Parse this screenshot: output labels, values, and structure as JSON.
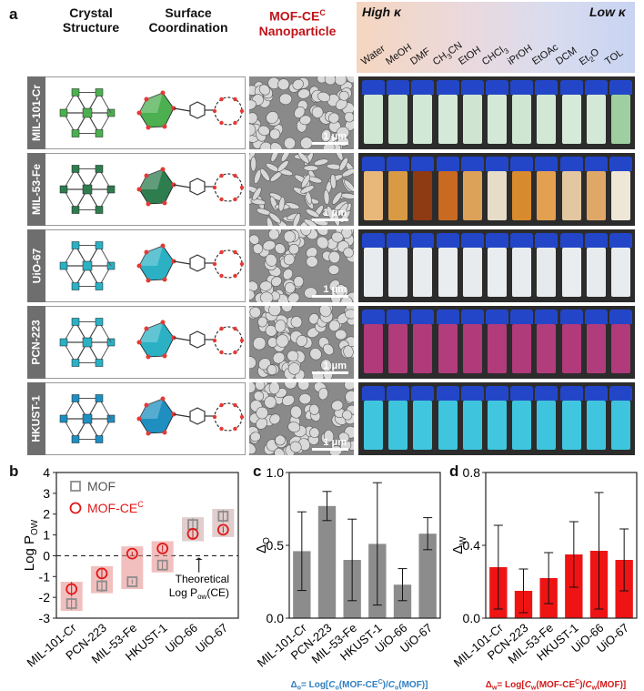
{
  "panels": {
    "a": "a",
    "b": "b",
    "c": "c",
    "d": "d"
  },
  "header": {
    "crystal": "Crystal Structure",
    "crystal1": "Crystal",
    "crystal2": "Structure",
    "surface1": "Surface",
    "surface2": "Coordination",
    "mofce1": "MOF-CE",
    "mofce_sup": "C",
    "mofce2": "Nanoparticle",
    "high": "High κ",
    "low": "Low κ"
  },
  "solvents": [
    "Water",
    "MeOH",
    "DMF",
    "CH3CN",
    "EtOH",
    "CHCl3",
    "iPrOH",
    "EtOAc",
    "DCM",
    "Et2O",
    "TOL"
  ],
  "rows": [
    {
      "label": "MIL-101-Cr",
      "scale": "1 μm",
      "vial_colors": [
        "#cfe7d3",
        "#cde5d0",
        "#d2e8d6",
        "#d5e9d8",
        "#cfe5d2",
        "#d3e8d6",
        "#cfe6d2",
        "#d2e8d5",
        "#d6ead9",
        "#d3e8d6",
        "#9fcfa0"
      ],
      "node": "#4caf50"
    },
    {
      "label": "MIL-53-Fe",
      "scale": "1 μm",
      "vial_colors": [
        "#e8b87a",
        "#d99a45",
        "#8e3a12",
        "#c96a23",
        "#dda25a",
        "#e6dcc8",
        "#d88a2e",
        "#e2a050",
        "#e3c7a1",
        "#e0a868",
        "#eee6d6"
      ],
      "node": "#2e7d4f"
    },
    {
      "label": "UiO-67",
      "scale": "1 μm",
      "vial_colors": [
        "#e8ecee",
        "#e6eaed",
        "#e8ecee",
        "#e9edef",
        "#e7ebee",
        "#e9edef",
        "#e8ecee",
        "#e6eaed",
        "#e9edef",
        "#e7ebee",
        "#e8ecee"
      ],
      "node": "#2bb0c4"
    },
    {
      "label": "PCN-223",
      "scale": "1 μm",
      "vial_colors": [
        "#b03a7a",
        "#b13c7c",
        "#b03a7a",
        "#b23d7d",
        "#b03a7a",
        "#b13b7b",
        "#b03a7a",
        "#b23d7d",
        "#b03a7a",
        "#b13c7c",
        "#b03a7a"
      ],
      "node": "#2bb0c4"
    },
    {
      "label": "HKUST-1",
      "scale": "1 μm",
      "vial_colors": [
        "#3fc6de",
        "#3ec5dd",
        "#40c7df",
        "#3fc6de",
        "#3ec5dd",
        "#40c7df",
        "#3fc6de",
        "#3ec5dd",
        "#40c7df",
        "#3fc6de",
        "#3ec5dd"
      ],
      "node": "#1e8fc0"
    }
  ],
  "colors": {
    "red": "#e01919",
    "grey": "#8c8c8c",
    "blue_caption": "#2f7fc1",
    "red_caption": "#d21b1b"
  },
  "chart_b": {
    "ylabel": "Log P",
    "ylabel_sub": "OW",
    "legend": [
      {
        "name": "MOF",
        "marker": "square"
      },
      {
        "name": "MOF-CE",
        "sup": "C",
        "marker": "circle"
      }
    ],
    "annotation": "Theoretical",
    "annotation2": "Log P",
    "annotation2_sub": "ow",
    "annotation2_rest": "(CE)"
  },
  "chart_data": [
    {
      "type": "scatter",
      "panel": "b",
      "categories": [
        "MIL-101-Cr",
        "PCN-223",
        "MIL-53-Fe",
        "HKUST-1",
        "UiO-66",
        "UiO-67"
      ],
      "series": [
        {
          "name": "MOF",
          "values": [
            -2.3,
            -1.45,
            -1.25,
            -0.45,
            1.5,
            1.9
          ],
          "errors": [
            0.3,
            0.3,
            0.1,
            0.2,
            0.3,
            0.3
          ]
        },
        {
          "name": "MOF-CE",
          "values": [
            -1.6,
            -0.85,
            0.1,
            0.35,
            1.05,
            1.25
          ],
          "errors": [
            0.35,
            0.2,
            0.1,
            0.15,
            0.2,
            0.15
          ]
        }
      ],
      "ylim": [
        -3,
        4
      ],
      "yticks": [
        -3,
        -2,
        -1,
        0,
        1,
        2,
        3,
        4
      ],
      "reference_line": 0
    },
    {
      "type": "bar",
      "panel": "c",
      "categories": [
        "MIL-101-Cr",
        "PCN-223",
        "MIL-53-Fe",
        "HKUST-1",
        "UiO-66",
        "UiO-67"
      ],
      "values": [
        0.46,
        0.77,
        0.4,
        0.51,
        0.23,
        0.58
      ],
      "errors": [
        0.27,
        0.1,
        0.28,
        0.42,
        0.11,
        0.11
      ],
      "ylabel": "Δ",
      "ylabel_sub": "O",
      "ylim": [
        0,
        1.0
      ],
      "yticks": [
        "0.0",
        "0.5",
        "1.0"
      ],
      "caption": "Δ",
      "caption_sub": "o",
      "caption_rest": "= Log[",
      "caption_c1": "C",
      "caption_s1": "o",
      "caption_m1": "(MOF-CE",
      "caption_sup": "C",
      "caption_m2": ")/",
      "caption_c2": "C",
      "caption_s2": "o",
      "caption_end": "(MOF)]"
    },
    {
      "type": "bar",
      "panel": "d",
      "categories": [
        "MIL-101-Cr",
        "PCN-223",
        "MIL-53-Fe",
        "HKUST-1",
        "UiO-66",
        "UiO-67"
      ],
      "values": [
        0.28,
        0.15,
        0.22,
        0.35,
        0.37,
        0.32
      ],
      "errors": [
        0.23,
        0.12,
        0.14,
        0.18,
        0.32,
        0.17
      ],
      "ylabel": "Δ",
      "ylabel_sub": "W",
      "ylim": [
        0,
        0.8
      ],
      "yticks": [
        "0.0",
        "0.4",
        "0.8"
      ],
      "caption": "Δ",
      "caption_sub": "w",
      "caption_rest": "= Log[",
      "caption_c1": "C",
      "caption_s1": "w",
      "caption_m1": "(MOF-CE",
      "caption_sup": "C",
      "caption_m2": ")/",
      "caption_c2": "C",
      "caption_s2": "w",
      "caption_end": "(MOF)]"
    }
  ]
}
